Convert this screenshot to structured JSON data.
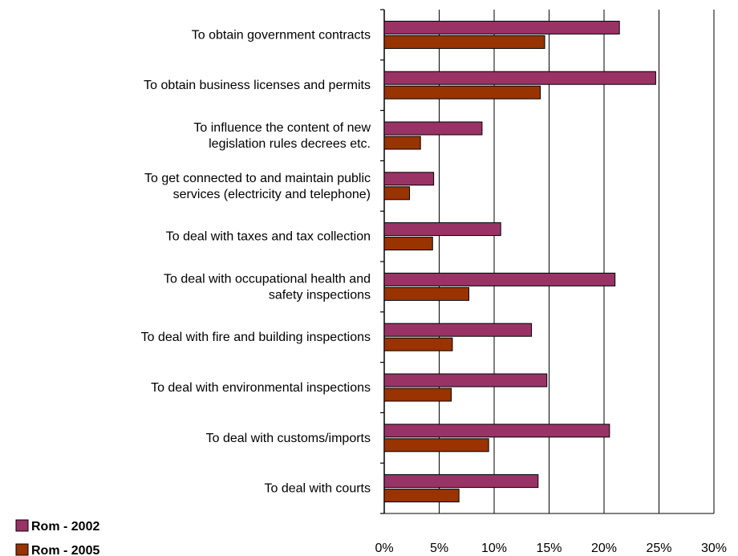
{
  "chart_data": {
    "type": "bar",
    "orientation": "horizontal",
    "categories": [
      [
        "To obtain government contracts"
      ],
      [
        "To obtain business licenses and permits"
      ],
      [
        "To influence the content of new",
        "legislation rules decrees etc."
      ],
      [
        "To get connected to and maintain public",
        "services (electricity and telephone)"
      ],
      [
        "To deal with taxes and tax collection"
      ],
      [
        "To deal with occupational health and",
        "safety inspections"
      ],
      [
        "To deal with fire and building inspections"
      ],
      [
        "To deal with environmental inspections"
      ],
      [
        "To deal with customs/imports"
      ],
      [
        "To deal with courts"
      ]
    ],
    "series": [
      {
        "name": "Rom - 2002",
        "color": "#993366",
        "values": [
          21.4,
          24.7,
          8.9,
          4.5,
          10.6,
          21.0,
          13.4,
          14.8,
          20.5,
          14.0
        ]
      },
      {
        "name": "Rom - 2005",
        "color": "#993300",
        "values": [
          14.6,
          14.2,
          3.3,
          2.3,
          4.4,
          7.7,
          6.2,
          6.1,
          9.5,
          6.8
        ]
      }
    ],
    "xlim": [
      0,
      30
    ],
    "xticks": [
      "0%",
      "5%",
      "10%",
      "15%",
      "20%",
      "25%",
      "30%"
    ],
    "grid": "vertical",
    "legend_position": "bottom-left"
  }
}
